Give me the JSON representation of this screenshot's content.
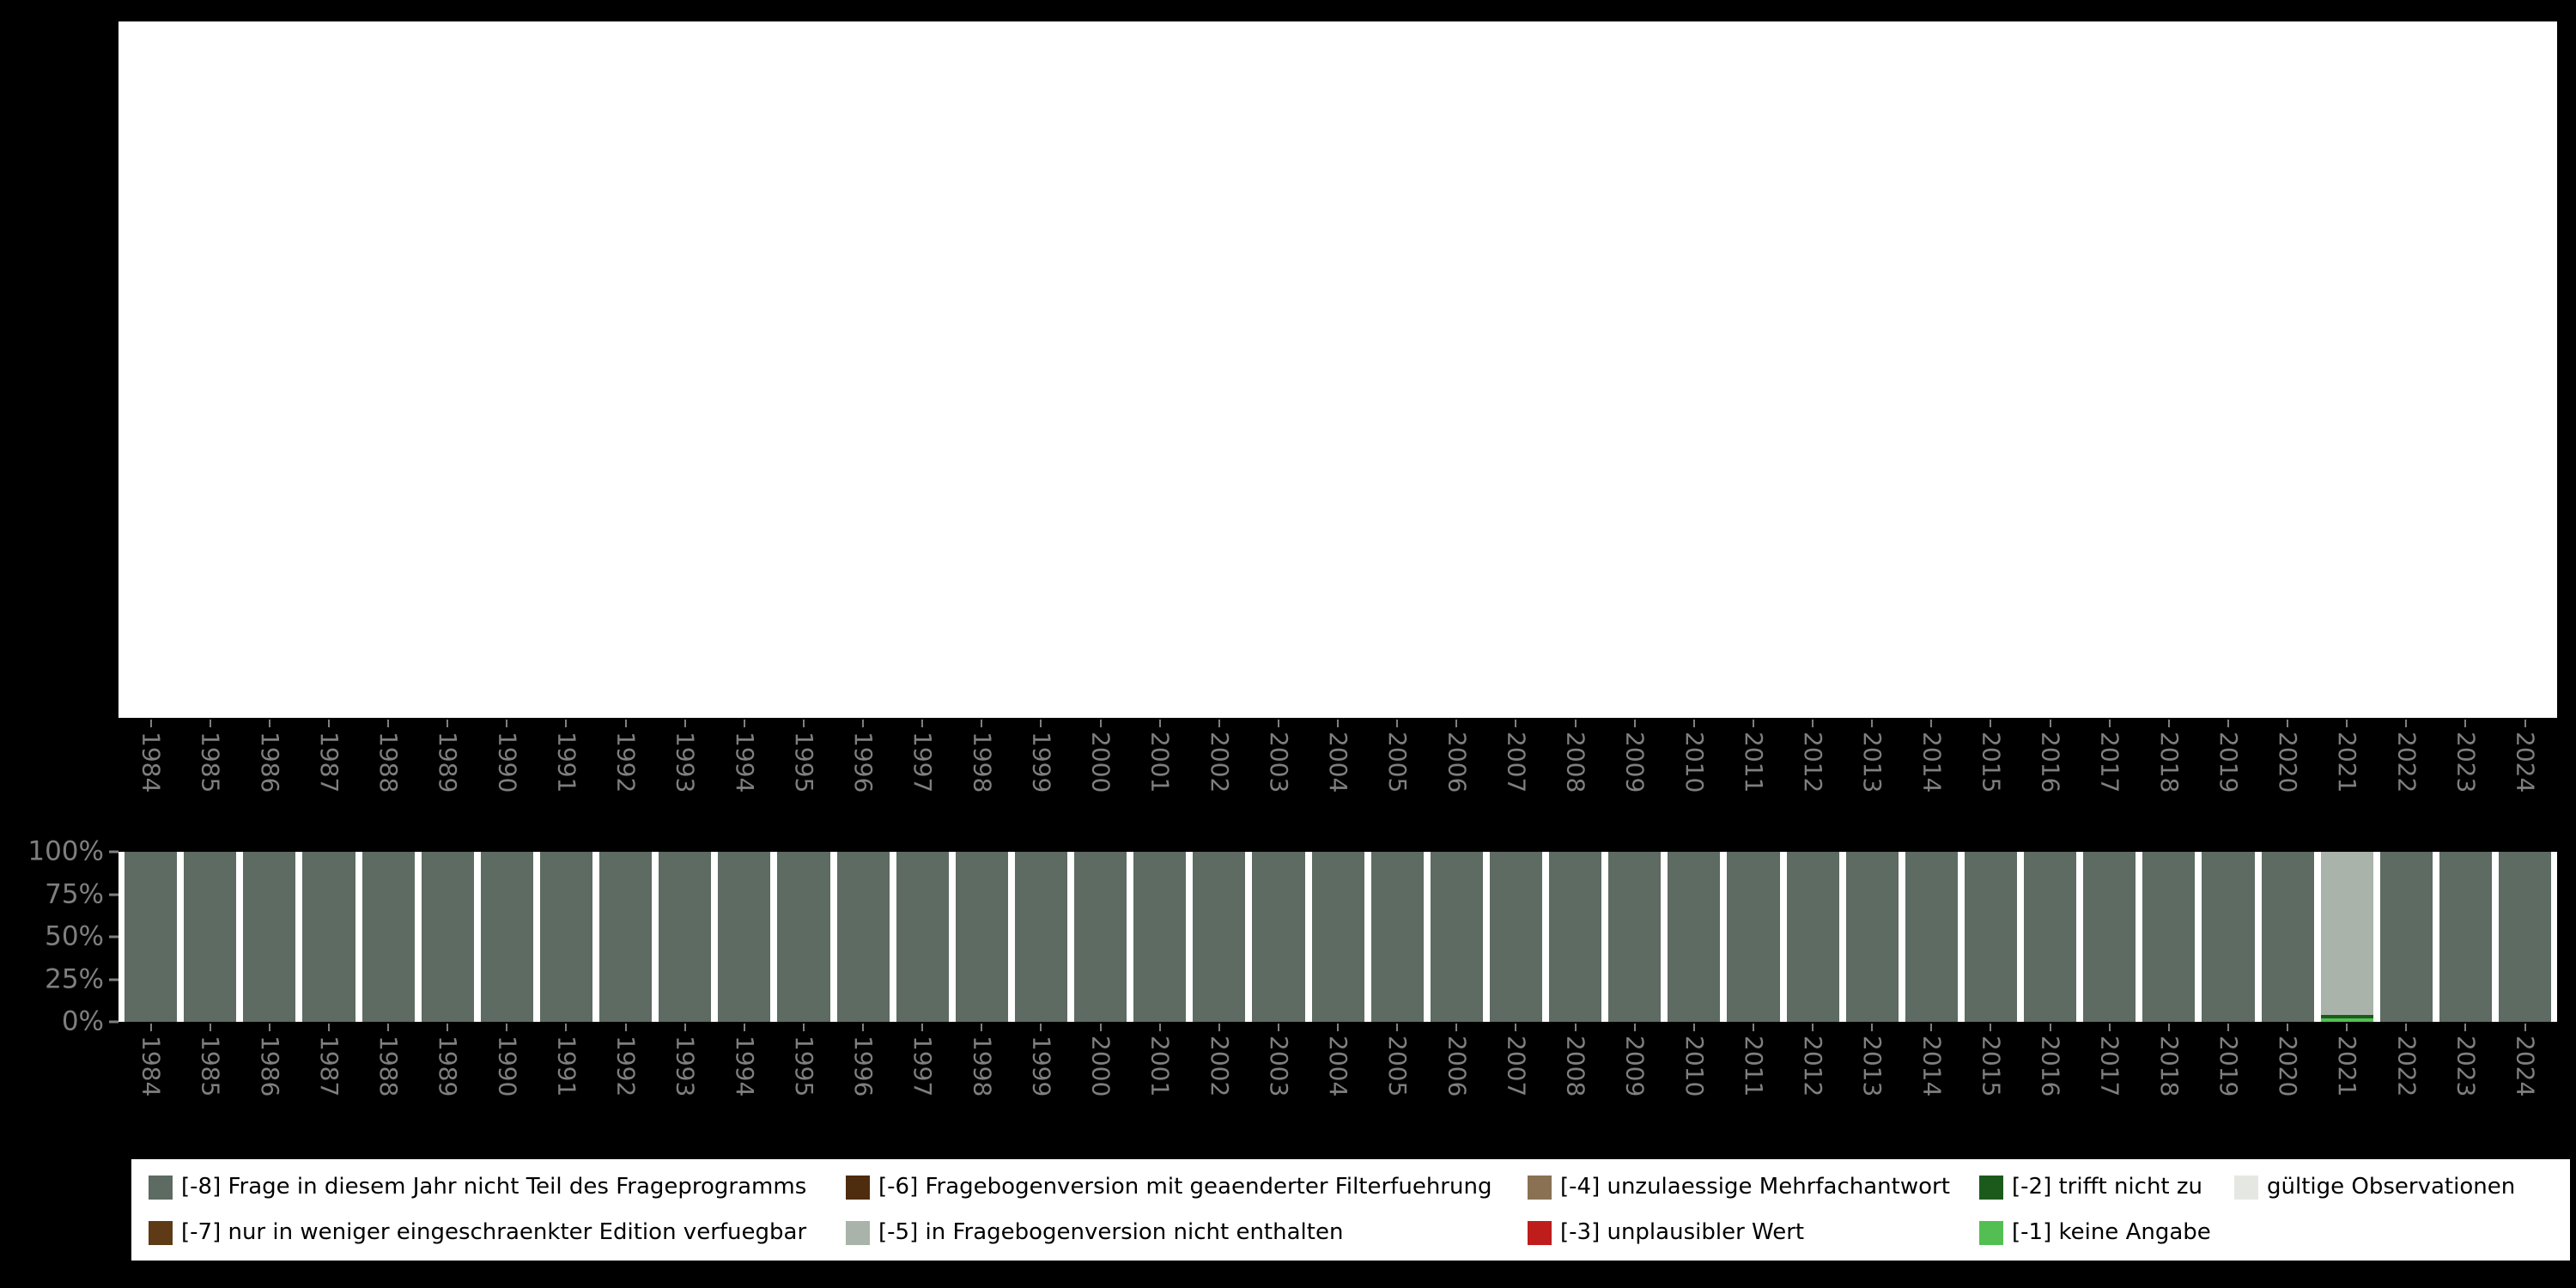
{
  "figure": {
    "background": "#000000",
    "panel_background": "#ffffff",
    "axis_text_color": "#7f7f7f"
  },
  "axes": {
    "years": [
      "1984",
      "1985",
      "1986",
      "1987",
      "1988",
      "1989",
      "1990",
      "1991",
      "1992",
      "1993",
      "1994",
      "1995",
      "1996",
      "1997",
      "1998",
      "1999",
      "2000",
      "2001",
      "2002",
      "2003",
      "2004",
      "2005",
      "2006",
      "2007",
      "2008",
      "2009",
      "2010",
      "2011",
      "2012",
      "2013",
      "2014",
      "2015",
      "2016",
      "2017",
      "2018",
      "2019",
      "2020",
      "2021",
      "2022",
      "2023",
      "2024"
    ],
    "y_ticks_top_to_bottom": [
      "100%",
      "75%",
      "50%",
      "25%",
      "0%"
    ]
  },
  "legend": {
    "background": "#ffffff",
    "text_color": "#000000",
    "items": [
      {
        "code": "-8",
        "label": "[-8] Frage in diesem Jahr nicht Teil des Frageprogramms",
        "color": "#5d6b62"
      },
      {
        "code": "-7",
        "label": "[-7] nur in weniger eingeschraenkter Edition verfuegbar",
        "color": "#5e3a17"
      },
      {
        "code": "-6",
        "label": "[-6] Fragebogenversion mit geaenderter Filterfuehrung",
        "color": "#4e2c0e"
      },
      {
        "code": "-5",
        "label": "[-5] in Fragebogenversion nicht enthalten",
        "color": "#a9b3a9"
      },
      {
        "code": "-4",
        "label": "[-4] unzulaessige Mehrfachantwort",
        "color": "#8a7154"
      },
      {
        "code": "-3",
        "label": "[-3] unplausibler Wert",
        "color": "#bf1d1c"
      },
      {
        "code": "-2",
        "label": "[-2] trifft nicht zu",
        "color": "#1c5a1c"
      },
      {
        "code": "-1",
        "label": "[-1] keine Angabe",
        "color": "#53bf53"
      },
      {
        "code": "valid",
        "label": "gültige Observationen",
        "color": "#e5e8e2"
      }
    ]
  },
  "chart_data": {
    "type": "bar",
    "stacked": true,
    "orientation": "vertical",
    "title": "",
    "xlabel": "",
    "ylabel": "",
    "ylim": [
      0,
      100
    ],
    "unit": "percent",
    "legend_position": "bottom",
    "grid": false,
    "x_tick_rotation": 90,
    "panels": {
      "upper": "empty white plot area",
      "lower": "100% stacked shares of missing-value codes per survey year"
    },
    "categories": [
      "1984",
      "1985",
      "1986",
      "1987",
      "1988",
      "1989",
      "1990",
      "1991",
      "1992",
      "1993",
      "1994",
      "1995",
      "1996",
      "1997",
      "1998",
      "1999",
      "2000",
      "2001",
      "2002",
      "2003",
      "2004",
      "2005",
      "2006",
      "2007",
      "2008",
      "2009",
      "2010",
      "2011",
      "2012",
      "2013",
      "2014",
      "2015",
      "2016",
      "2017",
      "2018",
      "2019",
      "2020",
      "2021",
      "2022",
      "2023",
      "2024"
    ],
    "series": [
      {
        "name": "[-8] Frage in diesem Jahr nicht Teil des Frageprogramms",
        "color": "#5d6b62",
        "values": [
          100,
          100,
          100,
          100,
          100,
          100,
          100,
          100,
          100,
          100,
          100,
          100,
          100,
          100,
          100,
          100,
          100,
          100,
          100,
          100,
          100,
          100,
          100,
          100,
          100,
          100,
          100,
          100,
          100,
          100,
          100,
          100,
          100,
          100,
          100,
          100,
          100,
          0,
          100,
          100,
          100
        ]
      },
      {
        "name": "[-5] in Fragebogenversion nicht enthalten",
        "color": "#a9b3a9",
        "values": [
          0,
          0,
          0,
          0,
          0,
          0,
          0,
          0,
          0,
          0,
          0,
          0,
          0,
          0,
          0,
          0,
          0,
          0,
          0,
          0,
          0,
          0,
          0,
          0,
          0,
          0,
          0,
          0,
          0,
          0,
          0,
          0,
          0,
          0,
          0,
          0,
          0,
          96,
          0,
          0,
          0
        ]
      },
      {
        "name": "[-2] trifft nicht zu",
        "color": "#1c5a1c",
        "values": [
          0,
          0,
          0,
          0,
          0,
          0,
          0,
          0,
          0,
          0,
          0,
          0,
          0,
          0,
          0,
          0,
          0,
          0,
          0,
          0,
          0,
          0,
          0,
          0,
          0,
          0,
          0,
          0,
          0,
          0,
          0,
          0,
          0,
          0,
          0,
          0,
          0,
          2,
          0,
          0,
          0
        ]
      },
      {
        "name": "[-1] keine Angabe",
        "color": "#53bf53",
        "values": [
          0,
          0,
          0,
          0,
          0,
          0,
          0,
          0,
          0,
          0,
          0,
          0,
          0,
          0,
          0,
          0,
          0,
          0,
          0,
          0,
          0,
          0,
          0,
          0,
          0,
          0,
          0,
          0,
          0,
          0,
          0,
          0,
          0,
          0,
          0,
          0,
          0,
          2,
          0,
          0,
          0
        ]
      }
    ]
  }
}
